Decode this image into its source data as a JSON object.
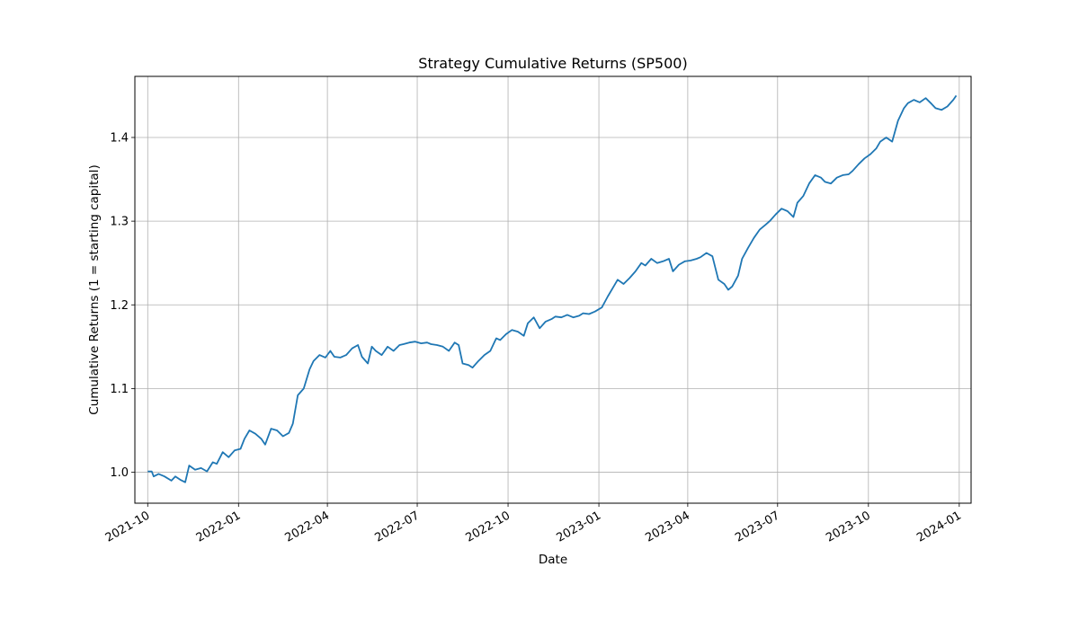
{
  "chart_data": {
    "type": "line",
    "title": "Strategy Cumulative Returns (SP500)",
    "xlabel": "Date",
    "ylabel": "Cumulative Returns (1 = starting capital)",
    "x_axis_type": "date",
    "xlim": [
      "2021-09-18",
      "2024-01-13"
    ],
    "ylim": [
      0.963,
      1.473
    ],
    "x_ticks": [
      "2021-10-01",
      "2022-01-01",
      "2022-04-01",
      "2022-07-01",
      "2022-10-01",
      "2023-01-01",
      "2023-04-01",
      "2023-07-01",
      "2023-10-01",
      "2024-01-01"
    ],
    "x_tick_labels": [
      "2021-10",
      "2022-01",
      "2022-04",
      "2022-07",
      "2022-10",
      "2023-01",
      "2023-04",
      "2023-07",
      "2023-10",
      "2024-01"
    ],
    "y_ticks": [
      1.0,
      1.1,
      1.2,
      1.3,
      1.4
    ],
    "y_tick_labels": [
      "1.0",
      "1.1",
      "1.2",
      "1.3",
      "1.4"
    ],
    "grid": true,
    "line_color": "#1f77b4",
    "series": [
      {
        "x": [
          "2021-10-01",
          "2021-10-05",
          "2021-10-07",
          "2021-10-12",
          "2021-10-18",
          "2021-10-25",
          "2021-10-29",
          "2021-11-03",
          "2021-11-08",
          "2021-11-12",
          "2021-11-18",
          "2021-11-24",
          "2021-11-30",
          "2021-12-06",
          "2021-12-10",
          "2021-12-16",
          "2021-12-22",
          "2021-12-28",
          "2022-01-03",
          "2022-01-07",
          "2022-01-12",
          "2022-01-18",
          "2022-01-24",
          "2022-01-28",
          "2022-02-03",
          "2022-02-09",
          "2022-02-15",
          "2022-02-21",
          "2022-02-25",
          "2022-03-02",
          "2022-03-08",
          "2022-03-14",
          "2022-03-18",
          "2022-03-24",
          "2022-03-30",
          "2022-04-04",
          "2022-04-08",
          "2022-04-14",
          "2022-04-20",
          "2022-04-26",
          "2022-05-02",
          "2022-05-06",
          "2022-05-12",
          "2022-05-16",
          "2022-05-20",
          "2022-05-26",
          "2022-06-01",
          "2022-06-07",
          "2022-06-13",
          "2022-06-17",
          "2022-06-23",
          "2022-06-29",
          "2022-07-05",
          "2022-07-11",
          "2022-07-15",
          "2022-07-21",
          "2022-07-27",
          "2022-08-02",
          "2022-08-08",
          "2022-08-12",
          "2022-08-16",
          "2022-08-22",
          "2022-08-26",
          "2022-09-01",
          "2022-09-07",
          "2022-09-13",
          "2022-09-19",
          "2022-09-23",
          "2022-09-29",
          "2022-10-05",
          "2022-10-11",
          "2022-10-17",
          "2022-10-21",
          "2022-10-27",
          "2022-11-02",
          "2022-11-08",
          "2022-11-14",
          "2022-11-18",
          "2022-11-24",
          "2022-11-30",
          "2022-12-06",
          "2022-12-12",
          "2022-12-16",
          "2022-12-22",
          "2022-12-28",
          "2023-01-04",
          "2023-01-10",
          "2023-01-16",
          "2023-01-20",
          "2023-01-26",
          "2023-02-01",
          "2023-02-07",
          "2023-02-13",
          "2023-02-17",
          "2023-02-23",
          "2023-03-01",
          "2023-03-07",
          "2023-03-13",
          "2023-03-17",
          "2023-03-23",
          "2023-03-29",
          "2023-04-04",
          "2023-04-10",
          "2023-04-14",
          "2023-04-20",
          "2023-04-26",
          "2023-05-02",
          "2023-05-08",
          "2023-05-12",
          "2023-05-16",
          "2023-05-22",
          "2023-05-26",
          "2023-06-01",
          "2023-06-07",
          "2023-06-13",
          "2023-06-19",
          "2023-06-23",
          "2023-06-29",
          "2023-07-05",
          "2023-07-11",
          "2023-07-17",
          "2023-07-21",
          "2023-07-27",
          "2023-08-02",
          "2023-08-08",
          "2023-08-14",
          "2023-08-18",
          "2023-08-24",
          "2023-08-30",
          "2023-09-05",
          "2023-09-11",
          "2023-09-15",
          "2023-09-21",
          "2023-09-27",
          "2023-10-03",
          "2023-10-09",
          "2023-10-13",
          "2023-10-19",
          "2023-10-25",
          "2023-10-31",
          "2023-11-06",
          "2023-11-10",
          "2023-11-16",
          "2023-11-22",
          "2023-11-28",
          "2023-12-04",
          "2023-12-08",
          "2023-12-14",
          "2023-12-20",
          "2023-12-26",
          "2023-12-29"
        ],
        "y": [
          1.001,
          1.001,
          0.995,
          0.998,
          0.995,
          0.99,
          0.995,
          0.991,
          0.988,
          1.008,
          1.003,
          1.005,
          1.001,
          1.012,
          1.01,
          1.024,
          1.018,
          1.026,
          1.028,
          1.04,
          1.05,
          1.046,
          1.04,
          1.033,
          1.052,
          1.05,
          1.043,
          1.047,
          1.058,
          1.092,
          1.1,
          1.123,
          1.133,
          1.14,
          1.137,
          1.145,
          1.138,
          1.137,
          1.14,
          1.148,
          1.152,
          1.138,
          1.13,
          1.15,
          1.145,
          1.14,
          1.15,
          1.145,
          1.152,
          1.153,
          1.155,
          1.156,
          1.154,
          1.155,
          1.153,
          1.152,
          1.15,
          1.145,
          1.155,
          1.152,
          1.13,
          1.128,
          1.125,
          1.133,
          1.14,
          1.145,
          1.16,
          1.158,
          1.165,
          1.17,
          1.168,
          1.163,
          1.178,
          1.185,
          1.172,
          1.18,
          1.183,
          1.186,
          1.185,
          1.188,
          1.185,
          1.187,
          1.19,
          1.189,
          1.192,
          1.197,
          1.21,
          1.222,
          1.23,
          1.225,
          1.232,
          1.24,
          1.25,
          1.247,
          1.255,
          1.25,
          1.252,
          1.255,
          1.24,
          1.248,
          1.252,
          1.253,
          1.255,
          1.257,
          1.262,
          1.258,
          1.23,
          1.225,
          1.218,
          1.222,
          1.235,
          1.255,
          1.268,
          1.28,
          1.29,
          1.296,
          1.3,
          1.308,
          1.315,
          1.312,
          1.305,
          1.322,
          1.33,
          1.345,
          1.355,
          1.352,
          1.347,
          1.345,
          1.352,
          1.355,
          1.356,
          1.36,
          1.368,
          1.375,
          1.38,
          1.387,
          1.395,
          1.4,
          1.395,
          1.42,
          1.435,
          1.441,
          1.445,
          1.442,
          1.447,
          1.44,
          1.435,
          1.433,
          1.437,
          1.445,
          1.45
        ]
      }
    ]
  }
}
